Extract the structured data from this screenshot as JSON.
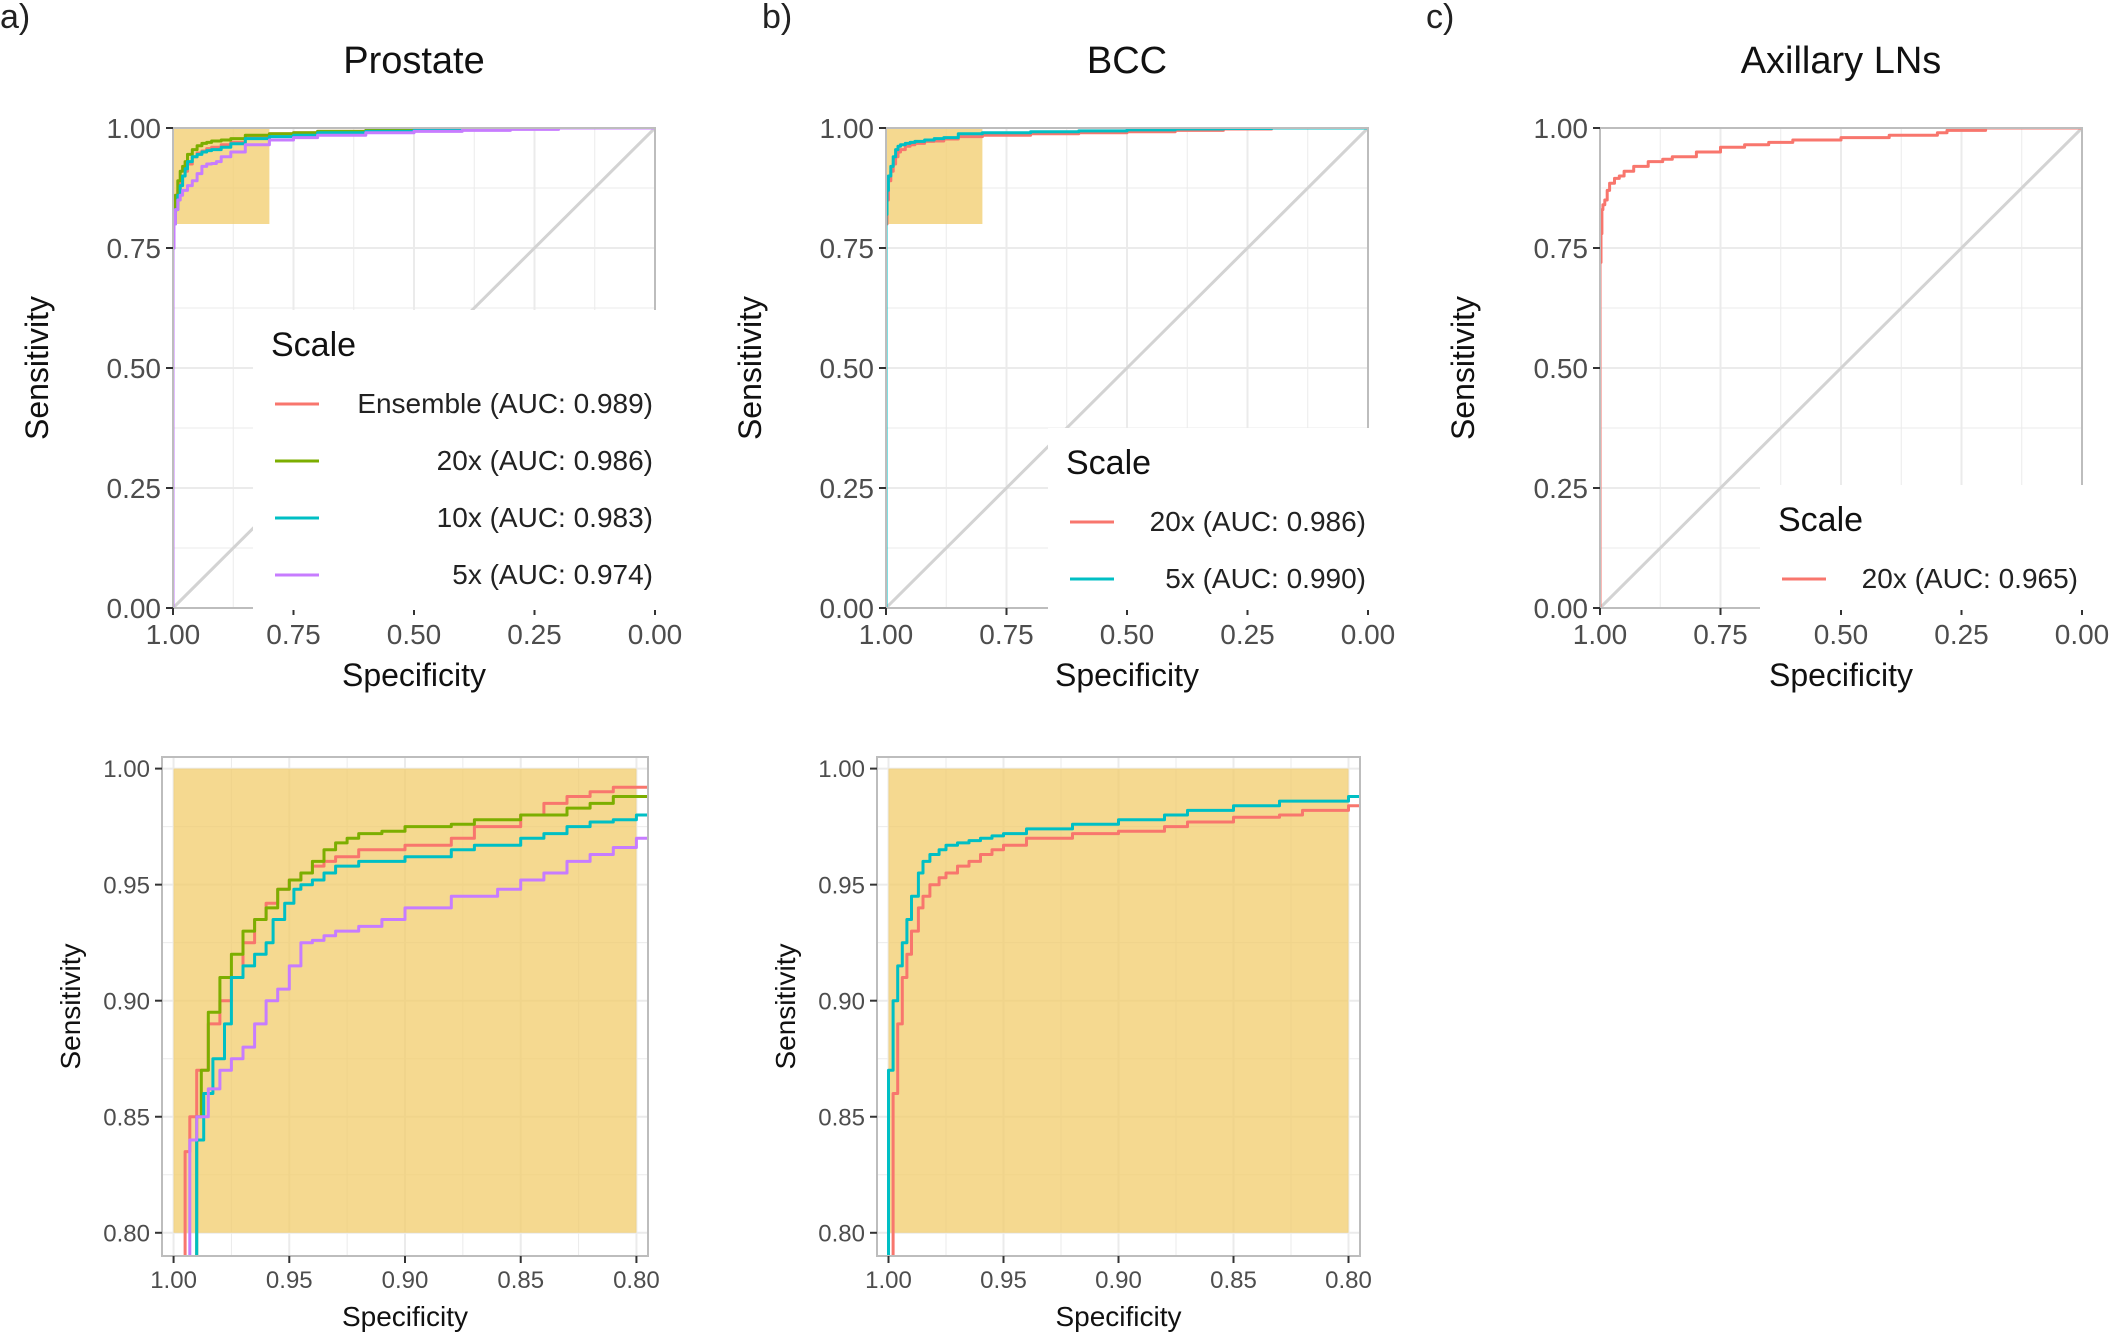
{
  "figure": {
    "description_labels": [
      "a)",
      "b)",
      "c)"
    ],
    "highlight_color": "#F2CC6B",
    "diagonal_color": "#D3D3D3",
    "grid_color": "#EBEBEB",
    "panel_border_color": "#BDBDBD",
    "series_colors": {
      "Ensemble": "#F8766D",
      "20x": "#7CAE00",
      "10x": "#00BFC4",
      "5x": "#C77CFF"
    }
  },
  "chart_data": [
    {
      "id": "prostate-roc",
      "type": "line",
      "panel_label": "a)",
      "title": "Prostate",
      "xlabel": "Specificity",
      "ylabel": "Sensitivity",
      "xlim": [
        1.0,
        0.0
      ],
      "ylim": [
        0.0,
        1.0
      ],
      "xticks": [
        "1.00",
        "0.75",
        "0.50",
        "0.25",
        "0.00"
      ],
      "yticks": [
        "0.00",
        "0.25",
        "0.50",
        "0.75",
        "1.00"
      ],
      "highlight": {
        "x": [
          1.0,
          0.8
        ],
        "y": [
          0.8,
          1.0
        ]
      },
      "diagonal": true,
      "legend": {
        "title": "Scale",
        "position": "bottom-right"
      },
      "series": [
        {
          "name": "Ensemble (AUC: 0.989)",
          "color": "#F8766D",
          "x": [
            1.0,
            1.0,
            0.998,
            0.995,
            0.99,
            0.985,
            0.98,
            0.975,
            0.97,
            0.96,
            0.95,
            0.94,
            0.93,
            0.92,
            0.9,
            0.88,
            0.85,
            0.8,
            0.75,
            0.7,
            0.6,
            0.5,
            0.4,
            0.3,
            0.2,
            0.1,
            0.0
          ],
          "y": [
            0.0,
            0.6,
            0.75,
            0.8,
            0.84,
            0.87,
            0.89,
            0.9,
            0.91,
            0.925,
            0.94,
            0.948,
            0.952,
            0.957,
            0.96,
            0.965,
            0.97,
            0.98,
            0.988,
            0.99,
            0.993,
            0.995,
            0.997,
            0.998,
            0.999,
            1.0,
            1.0
          ]
        },
        {
          "name": "20x (AUC: 0.986)",
          "color": "#7CAE00",
          "x": [
            1.0,
            1.0,
            0.998,
            0.995,
            0.99,
            0.985,
            0.98,
            0.975,
            0.97,
            0.96,
            0.95,
            0.94,
            0.93,
            0.92,
            0.9,
            0.88,
            0.85,
            0.8,
            0.75,
            0.7,
            0.6,
            0.5,
            0.4,
            0.3,
            0.2,
            0.1,
            0.0
          ],
          "y": [
            0.0,
            0.6,
            0.78,
            0.82,
            0.86,
            0.89,
            0.91,
            0.92,
            0.93,
            0.945,
            0.955,
            0.963,
            0.968,
            0.97,
            0.973,
            0.975,
            0.978,
            0.985,
            0.988,
            0.99,
            0.993,
            0.995,
            0.997,
            0.998,
            0.999,
            1.0,
            1.0
          ]
        },
        {
          "name": "10x (AUC: 0.983)",
          "color": "#00BFC4",
          "x": [
            1.0,
            1.0,
            0.998,
            0.995,
            0.99,
            0.985,
            0.98,
            0.975,
            0.97,
            0.96,
            0.95,
            0.94,
            0.93,
            0.92,
            0.9,
            0.88,
            0.85,
            0.8,
            0.75,
            0.7,
            0.6,
            0.5,
            0.4,
            0.3,
            0.2,
            0.1,
            0.0
          ],
          "y": [
            0.0,
            0.6,
            0.75,
            0.8,
            0.83,
            0.86,
            0.88,
            0.9,
            0.915,
            0.93,
            0.94,
            0.945,
            0.95,
            0.953,
            0.955,
            0.96,
            0.967,
            0.978,
            0.982,
            0.985,
            0.99,
            0.993,
            0.995,
            0.997,
            0.999,
            1.0,
            1.0
          ]
        },
        {
          "name": "5x (AUC: 0.974)",
          "color": "#C77CFF",
          "x": [
            1.0,
            1.0,
            0.998,
            0.995,
            0.99,
            0.985,
            0.98,
            0.97,
            0.96,
            0.95,
            0.94,
            0.93,
            0.92,
            0.91,
            0.9,
            0.88,
            0.85,
            0.8,
            0.75,
            0.7,
            0.6,
            0.5,
            0.4,
            0.3,
            0.2,
            0.1,
            0.0
          ],
          "y": [
            0.0,
            0.6,
            0.75,
            0.8,
            0.83,
            0.85,
            0.86,
            0.87,
            0.88,
            0.89,
            0.905,
            0.92,
            0.925,
            0.926,
            0.93,
            0.94,
            0.95,
            0.965,
            0.975,
            0.98,
            0.985,
            0.99,
            0.993,
            0.995,
            0.997,
            1.0,
            1.0
          ]
        }
      ]
    },
    {
      "id": "bcc-roc",
      "type": "line",
      "panel_label": "b)",
      "title": "BCC",
      "xlabel": "Specificity",
      "ylabel": "Sensitivity",
      "xlim": [
        1.0,
        0.0
      ],
      "ylim": [
        0.0,
        1.0
      ],
      "xticks": [
        "1.00",
        "0.75",
        "0.50",
        "0.25",
        "0.00"
      ],
      "yticks": [
        "0.00",
        "0.25",
        "0.50",
        "0.75",
        "1.00"
      ],
      "highlight": {
        "x": [
          1.0,
          0.8
        ],
        "y": [
          0.8,
          1.0
        ]
      },
      "diagonal": true,
      "legend": {
        "title": "Scale",
        "position": "bottom-right"
      },
      "series": [
        {
          "name": "20x (AUC: 0.986)",
          "color": "#F8766D",
          "x": [
            1.0,
            1.0,
            0.998,
            0.995,
            0.99,
            0.985,
            0.98,
            0.975,
            0.97,
            0.96,
            0.95,
            0.94,
            0.92,
            0.9,
            0.88,
            0.85,
            0.8,
            0.7,
            0.6,
            0.5,
            0.4,
            0.3,
            0.2,
            0.1,
            0.0
          ],
          "y": [
            0.0,
            0.75,
            0.8,
            0.85,
            0.89,
            0.91,
            0.925,
            0.94,
            0.95,
            0.955,
            0.962,
            0.965,
            0.968,
            0.972,
            0.973,
            0.977,
            0.982,
            0.985,
            0.988,
            0.99,
            0.992,
            0.995,
            0.998,
            1.0,
            1.0
          ]
        },
        {
          "name": "5x (AUC: 0.990)",
          "color": "#00BFC4",
          "x": [
            1.0,
            1.0,
            0.998,
            0.995,
            0.99,
            0.985,
            0.98,
            0.975,
            0.97,
            0.96,
            0.95,
            0.94,
            0.92,
            0.9,
            0.88,
            0.85,
            0.8,
            0.7,
            0.6,
            0.5,
            0.4,
            0.3,
            0.2,
            0.1,
            0.0
          ],
          "y": [
            0.0,
            0.75,
            0.82,
            0.87,
            0.9,
            0.92,
            0.94,
            0.955,
            0.962,
            0.965,
            0.968,
            0.97,
            0.972,
            0.975,
            0.978,
            0.98,
            0.988,
            0.99,
            0.992,
            0.994,
            0.996,
            0.998,
            0.999,
            1.0,
            1.0
          ]
        }
      ]
    },
    {
      "id": "axillary-roc",
      "type": "line",
      "panel_label": "c)",
      "title": "Axillary LNs",
      "xlabel": "Specificity",
      "ylabel": "Sensitivity",
      "xlim": [
        1.0,
        0.0
      ],
      "ylim": [
        0.0,
        1.0
      ],
      "xticks": [
        "1.00",
        "0.75",
        "0.50",
        "0.25",
        "0.00"
      ],
      "yticks": [
        "0.00",
        "0.25",
        "0.50",
        "0.75",
        "1.00"
      ],
      "diagonal": true,
      "legend": {
        "title": "Scale",
        "position": "bottom-right"
      },
      "series": [
        {
          "name": "20x (AUC: 0.965)",
          "color": "#F8766D",
          "x": [
            1.0,
            1.0,
            0.998,
            0.996,
            0.994,
            0.99,
            0.985,
            0.98,
            0.97,
            0.96,
            0.95,
            0.93,
            0.9,
            0.87,
            0.85,
            0.8,
            0.75,
            0.7,
            0.65,
            0.6,
            0.5,
            0.4,
            0.3,
            0.28,
            0.2,
            0.1,
            0.0
          ],
          "y": [
            0.0,
            0.6,
            0.72,
            0.78,
            0.83,
            0.84,
            0.85,
            0.87,
            0.885,
            0.895,
            0.9,
            0.91,
            0.92,
            0.93,
            0.935,
            0.94,
            0.95,
            0.96,
            0.965,
            0.97,
            0.975,
            0.98,
            0.985,
            0.99,
            0.995,
            1.0,
            1.0
          ]
        }
      ]
    },
    {
      "id": "prostate-zoom",
      "type": "line",
      "title": "",
      "xlabel": "Specificity",
      "ylabel": "Sensitivity",
      "xlim": [
        1.005,
        0.795
      ],
      "ylim": [
        0.79,
        1.005
      ],
      "xticks": [
        "1.00",
        "0.95",
        "0.90",
        "0.85",
        "0.80"
      ],
      "yticks": [
        "0.80",
        "0.85",
        "0.90",
        "0.95",
        "1.00"
      ],
      "highlight": {
        "x": [
          1.0,
          0.8
        ],
        "y": [
          0.8,
          1.0
        ]
      },
      "series": [
        {
          "name": "Ensemble",
          "color": "#F8766D",
          "x": [
            0.995,
            0.995,
            0.993,
            0.99,
            0.985,
            0.98,
            0.975,
            0.97,
            0.965,
            0.96,
            0.955,
            0.95,
            0.945,
            0.94,
            0.935,
            0.93,
            0.92,
            0.9,
            0.88,
            0.87,
            0.85,
            0.84,
            0.83,
            0.82,
            0.81,
            0.8,
            0.795
          ],
          "y": [
            0.79,
            0.81,
            0.835,
            0.85,
            0.87,
            0.89,
            0.9,
            0.91,
            0.925,
            0.935,
            0.942,
            0.948,
            0.952,
            0.955,
            0.958,
            0.96,
            0.962,
            0.965,
            0.967,
            0.97,
            0.975,
            0.98,
            0.985,
            0.988,
            0.99,
            0.992,
            0.992
          ]
        },
        {
          "name": "20x",
          "color": "#7CAE00",
          "x": [
            0.99,
            0.99,
            0.988,
            0.985,
            0.98,
            0.975,
            0.97,
            0.965,
            0.96,
            0.955,
            0.95,
            0.945,
            0.94,
            0.935,
            0.93,
            0.925,
            0.92,
            0.91,
            0.9,
            0.88,
            0.87,
            0.85,
            0.83,
            0.82,
            0.81,
            0.8,
            0.795
          ],
          "y": [
            0.79,
            0.82,
            0.85,
            0.87,
            0.895,
            0.91,
            0.92,
            0.93,
            0.935,
            0.94,
            0.948,
            0.952,
            0.955,
            0.96,
            0.965,
            0.968,
            0.97,
            0.972,
            0.973,
            0.975,
            0.976,
            0.978,
            0.98,
            0.983,
            0.985,
            0.988,
            0.988
          ]
        },
        {
          "name": "10x",
          "color": "#00BFC4",
          "x": [
            0.99,
            0.99,
            0.987,
            0.983,
            0.978,
            0.975,
            0.97,
            0.965,
            0.96,
            0.957,
            0.952,
            0.948,
            0.945,
            0.94,
            0.935,
            0.93,
            0.92,
            0.9,
            0.88,
            0.87,
            0.85,
            0.84,
            0.83,
            0.82,
            0.81,
            0.8,
            0.795
          ],
          "y": [
            0.79,
            0.82,
            0.84,
            0.86,
            0.875,
            0.89,
            0.91,
            0.915,
            0.92,
            0.925,
            0.935,
            0.942,
            0.948,
            0.95,
            0.952,
            0.955,
            0.958,
            0.96,
            0.962,
            0.965,
            0.967,
            0.97,
            0.972,
            0.975,
            0.977,
            0.978,
            0.98
          ]
        },
        {
          "name": "5x",
          "color": "#C77CFF",
          "x": [
            0.993,
            0.993,
            0.99,
            0.985,
            0.98,
            0.975,
            0.97,
            0.965,
            0.96,
            0.955,
            0.95,
            0.945,
            0.94,
            0.935,
            0.93,
            0.92,
            0.91,
            0.9,
            0.88,
            0.86,
            0.85,
            0.84,
            0.83,
            0.82,
            0.81,
            0.8,
            0.795
          ],
          "y": [
            0.79,
            0.82,
            0.84,
            0.85,
            0.862,
            0.87,
            0.875,
            0.88,
            0.89,
            0.9,
            0.905,
            0.915,
            0.925,
            0.926,
            0.928,
            0.93,
            0.932,
            0.935,
            0.94,
            0.945,
            0.948,
            0.952,
            0.955,
            0.96,
            0.963,
            0.966,
            0.97
          ]
        }
      ]
    },
    {
      "id": "bcc-zoom",
      "type": "line",
      "title": "",
      "xlabel": "Specificity",
      "ylabel": "Sensitivity",
      "xlim": [
        1.005,
        0.795
      ],
      "ylim": [
        0.79,
        1.005
      ],
      "xticks": [
        "1.00",
        "0.95",
        "0.90",
        "0.85",
        "0.80"
      ],
      "yticks": [
        "0.80",
        "0.85",
        "0.90",
        "0.95",
        "1.00"
      ],
      "highlight": {
        "x": [
          1.0,
          0.8
        ],
        "y": [
          0.8,
          1.0
        ]
      },
      "series": [
        {
          "name": "20x",
          "color": "#F8766D",
          "x": [
            0.998,
            0.998,
            0.996,
            0.994,
            0.992,
            0.99,
            0.987,
            0.985,
            0.982,
            0.978,
            0.975,
            0.97,
            0.965,
            0.96,
            0.955,
            0.95,
            0.94,
            0.92,
            0.9,
            0.88,
            0.87,
            0.85,
            0.83,
            0.82,
            0.8,
            0.795
          ],
          "y": [
            0.79,
            0.82,
            0.86,
            0.89,
            0.91,
            0.92,
            0.93,
            0.94,
            0.945,
            0.95,
            0.953,
            0.955,
            0.958,
            0.96,
            0.963,
            0.965,
            0.967,
            0.97,
            0.972,
            0.973,
            0.975,
            0.977,
            0.979,
            0.98,
            0.982,
            0.984
          ]
        },
        {
          "name": "5x",
          "color": "#00BFC4",
          "x": [
            1.0,
            1.0,
            0.998,
            0.996,
            0.994,
            0.992,
            0.99,
            0.987,
            0.985,
            0.982,
            0.978,
            0.975,
            0.97,
            0.965,
            0.96,
            0.955,
            0.95,
            0.94,
            0.92,
            0.9,
            0.88,
            0.87,
            0.85,
            0.83,
            0.8,
            0.795
          ],
          "y": [
            0.79,
            0.84,
            0.87,
            0.9,
            0.915,
            0.925,
            0.935,
            0.945,
            0.955,
            0.96,
            0.963,
            0.965,
            0.967,
            0.968,
            0.969,
            0.97,
            0.971,
            0.972,
            0.974,
            0.976,
            0.978,
            0.98,
            0.982,
            0.984,
            0.986,
            0.988
          ]
        }
      ]
    }
  ]
}
